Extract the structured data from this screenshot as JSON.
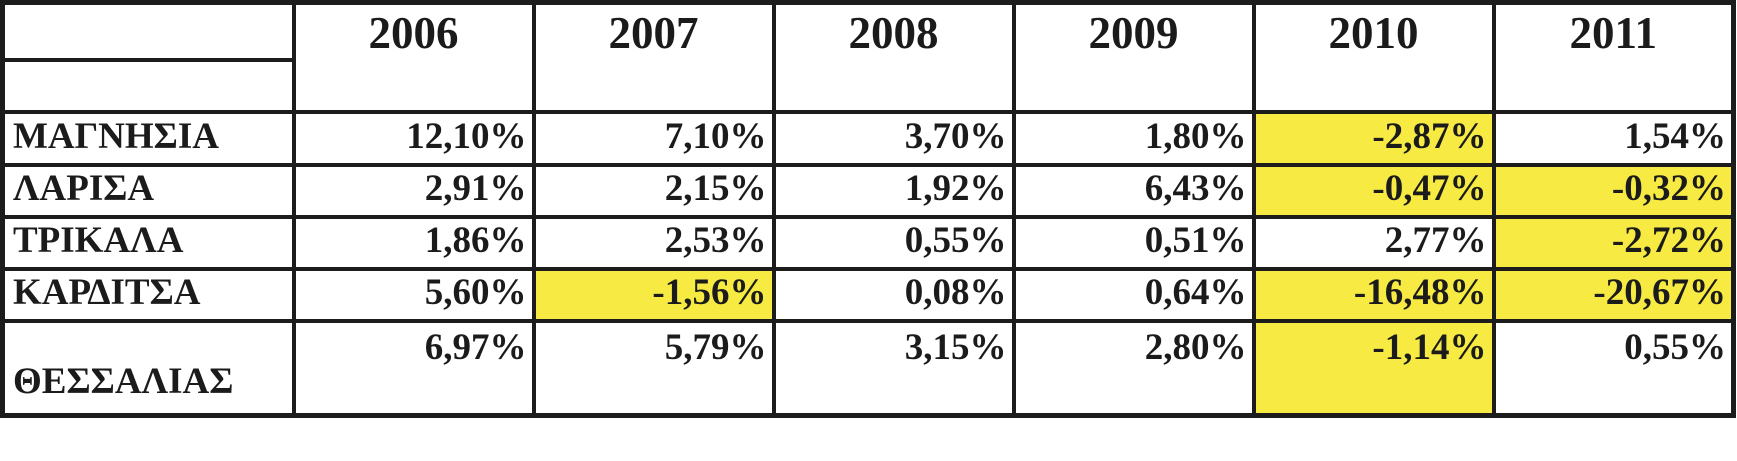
{
  "chart_data": {
    "type": "table",
    "columns": [
      "",
      "2006",
      "2007",
      "2008",
      "2009",
      "2010",
      "2011"
    ],
    "rows": [
      {
        "label": "ΜΑΓΝΗΣΙΑ",
        "values": [
          "12,10%",
          "7,10%",
          "3,70%",
          "1,80%",
          "-2,87%",
          "1,54%"
        ],
        "highlighted": [
          false,
          false,
          false,
          false,
          true,
          false
        ]
      },
      {
        "label": "ΛΑΡΙΣΑ",
        "values": [
          "2,91%",
          "2,15%",
          "1,92%",
          "6,43%",
          "-0,47%",
          "-0,32%"
        ],
        "highlighted": [
          false,
          false,
          false,
          false,
          true,
          true
        ]
      },
      {
        "label": "ΤΡΙΚΑΛΑ",
        "values": [
          "1,86%",
          "2,53%",
          "0,55%",
          "0,51%",
          "2,77%",
          "-2,72%"
        ],
        "highlighted": [
          false,
          false,
          false,
          false,
          false,
          true
        ]
      },
      {
        "label": "ΚΑΡΔΙΤΣΑ",
        "values": [
          "5,60%",
          "-1,56%",
          "0,08%",
          "0,64%",
          "-16,48%",
          "-20,67%"
        ],
        "highlighted": [
          false,
          true,
          false,
          false,
          true,
          true
        ]
      },
      {
        "label": "ΘΕΣΣΑΛΙΑΣ",
        "values": [
          "6,97%",
          "5,79%",
          "3,15%",
          "2,80%",
          "-1,14%",
          "0,55%"
        ],
        "highlighted": [
          false,
          false,
          false,
          false,
          true,
          false
        ]
      }
    ],
    "highlight_color": "#F7EB43",
    "text_color": "#1b1b1b",
    "border_color": "#1c1c1c",
    "number_format": "percent, comma decimal separator",
    "layout_hints": {
      "year_header_spans_two_rows": true,
      "values_right_aligned": true,
      "last_row_label_bottom_aligned": true,
      "last_row_values_top_aligned": true
    }
  }
}
